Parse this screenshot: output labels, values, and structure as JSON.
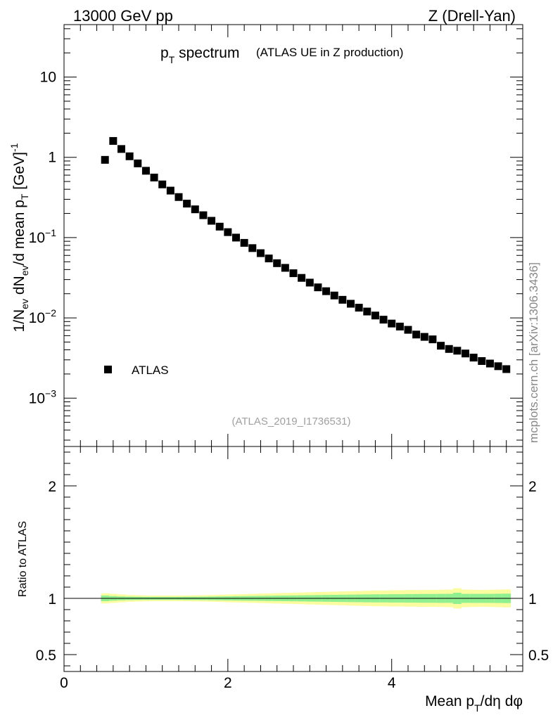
{
  "header": {
    "left": "13000 GeV pp",
    "right": "Z (Drell-Yan)"
  },
  "side_label": "mcplots.cern.ch [arXiv:1306.3436]",
  "chart_data": [
    {
      "type": "scatter",
      "panel": "main",
      "title": "p",
      "title_sub": "T",
      "title_rest": " spectrum",
      "subtitle": "(ATLAS UE in Z production)",
      "watermark": "(ATLAS_2019_I1736531)",
      "ylabel": "1/N_ev dN_ev/d mean p_T [GeV]^-1",
      "yscale": "log",
      "ylim": [
        0.00025,
        45
      ],
      "xlim": [
        0,
        5.6
      ],
      "yticks": [
        {
          "value": 10,
          "base": "10",
          "exp": ""
        },
        {
          "value": 1,
          "base": "1",
          "exp": ""
        },
        {
          "value": 0.1,
          "base": "10",
          "exp": "−1"
        },
        {
          "value": 0.01,
          "base": "10",
          "exp": "−2"
        },
        {
          "value": 0.001,
          "base": "10",
          "exp": "−3"
        }
      ],
      "legend": {
        "position": "bottom-left",
        "entries": [
          "ATLAS"
        ]
      },
      "series": [
        {
          "name": "ATLAS",
          "marker": "square",
          "x": [
            0.5,
            0.6,
            0.7,
            0.8,
            0.9,
            1.0,
            1.1,
            1.2,
            1.3,
            1.4,
            1.5,
            1.6,
            1.7,
            1.8,
            1.9,
            2.0,
            2.1,
            2.2,
            2.3,
            2.4,
            2.5,
            2.6,
            2.7,
            2.8,
            2.9,
            3.0,
            3.1,
            3.2,
            3.3,
            3.4,
            3.5,
            3.6,
            3.7,
            3.8,
            3.9,
            4.0,
            4.1,
            4.2,
            4.3,
            4.4,
            4.5,
            4.6,
            4.7,
            4.8,
            4.9,
            5.0,
            5.1,
            5.2,
            5.3,
            5.4
          ],
          "y": [
            0.93,
            1.6,
            1.27,
            1.03,
            0.84,
            0.68,
            0.56,
            0.46,
            0.385,
            0.32,
            0.265,
            0.225,
            0.19,
            0.162,
            0.137,
            0.117,
            0.1,
            0.086,
            0.074,
            0.064,
            0.055,
            0.048,
            0.042,
            0.036,
            0.0315,
            0.0275,
            0.024,
            0.0215,
            0.019,
            0.0168,
            0.015,
            0.0134,
            0.012,
            0.0107,
            0.0095,
            0.0085,
            0.0078,
            0.0071,
            0.0062,
            0.0058,
            0.0054,
            0.0045,
            0.0041,
            0.0039,
            0.0036,
            0.0032,
            0.0029,
            0.0027,
            0.0025,
            0.0023
          ]
        }
      ]
    },
    {
      "type": "area",
      "panel": "ratio",
      "ylabel": "Ratio to ATLAS",
      "ylim": [
        0.35,
        2.35
      ],
      "xlim": [
        0,
        5.6
      ],
      "xlabel": "Mean p_T/dη dφ",
      "xticks": [
        "0",
        "2",
        "4"
      ],
      "xtick_values": [
        0,
        2,
        4
      ],
      "yticks": [
        "0.5",
        "1",
        "2"
      ],
      "ytick_values": [
        0.5,
        1,
        2
      ],
      "reference_line": 1,
      "bands": {
        "x_edges": [
          0.45,
          0.55,
          0.65,
          0.75,
          0.85,
          0.95,
          1.05,
          1.15,
          1.25,
          1.35,
          1.45,
          1.55,
          1.65,
          1.75,
          1.85,
          1.95,
          2.05,
          2.15,
          2.25,
          2.35,
          2.45,
          2.55,
          2.65,
          2.75,
          2.85,
          2.95,
          3.05,
          3.15,
          3.25,
          3.35,
          3.45,
          3.55,
          3.65,
          3.75,
          3.85,
          3.95,
          4.05,
          4.15,
          4.25,
          4.35,
          4.45,
          4.55,
          4.65,
          4.75,
          4.85,
          4.95,
          5.05,
          5.15,
          5.25,
          5.35,
          5.45
        ],
        "yellow_half": [
          0.045,
          0.04,
          0.035,
          0.03,
          0.028,
          0.026,
          0.025,
          0.025,
          0.025,
          0.025,
          0.026,
          0.027,
          0.028,
          0.03,
          0.032,
          0.034,
          0.036,
          0.038,
          0.04,
          0.042,
          0.044,
          0.046,
          0.048,
          0.05,
          0.052,
          0.054,
          0.056,
          0.058,
          0.06,
          0.062,
          0.064,
          0.066,
          0.068,
          0.07,
          0.07,
          0.072,
          0.072,
          0.074,
          0.074,
          0.075,
          0.075,
          0.076,
          0.078,
          0.09,
          0.078,
          0.076,
          0.075,
          0.076,
          0.078,
          0.08
        ],
        "green_half": [
          0.025,
          0.02,
          0.017,
          0.015,
          0.014,
          0.013,
          0.013,
          0.013,
          0.013,
          0.013,
          0.014,
          0.014,
          0.015,
          0.016,
          0.017,
          0.018,
          0.019,
          0.02,
          0.021,
          0.022,
          0.023,
          0.024,
          0.025,
          0.026,
          0.027,
          0.028,
          0.029,
          0.03,
          0.031,
          0.032,
          0.033,
          0.034,
          0.035,
          0.036,
          0.036,
          0.037,
          0.037,
          0.038,
          0.038,
          0.039,
          0.039,
          0.04,
          0.04,
          0.05,
          0.04,
          0.04,
          0.04,
          0.04,
          0.041,
          0.042
        ]
      },
      "colors": {
        "yellow": "#fbfba0",
        "green": "#90f090"
      }
    }
  ]
}
